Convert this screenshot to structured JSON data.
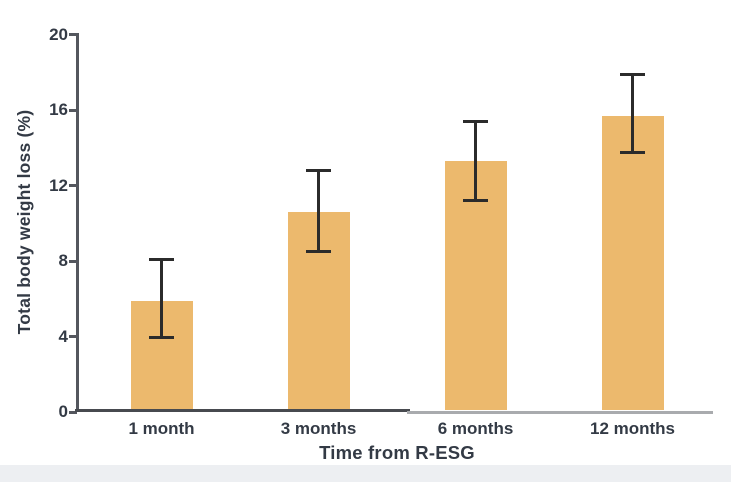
{
  "chart_data": {
    "type": "bar",
    "title": "",
    "categories": [
      "1 month",
      "3 months",
      "6 months",
      "12 months"
    ],
    "values": [
      5.9,
      10.6,
      13.3,
      15.7
    ],
    "error_low": [
      3.9,
      8.5,
      11.2,
      13.7
    ],
    "error_high": [
      8.1,
      12.8,
      15.4,
      17.9
    ],
    "xlabel": "Time from R-ESG",
    "ylabel": "Total body weight loss (%)",
    "ylim": [
      0,
      20
    ],
    "yticks": [
      0,
      4,
      8,
      12,
      16,
      20
    ],
    "grid": false,
    "legend_position": "none",
    "colors": {
      "bar_fill": "#ecb96d",
      "error_bar": "#2b2b2b",
      "axis": "#54575e",
      "text": "#333a45",
      "bottom_strip": "#edeff2"
    }
  }
}
